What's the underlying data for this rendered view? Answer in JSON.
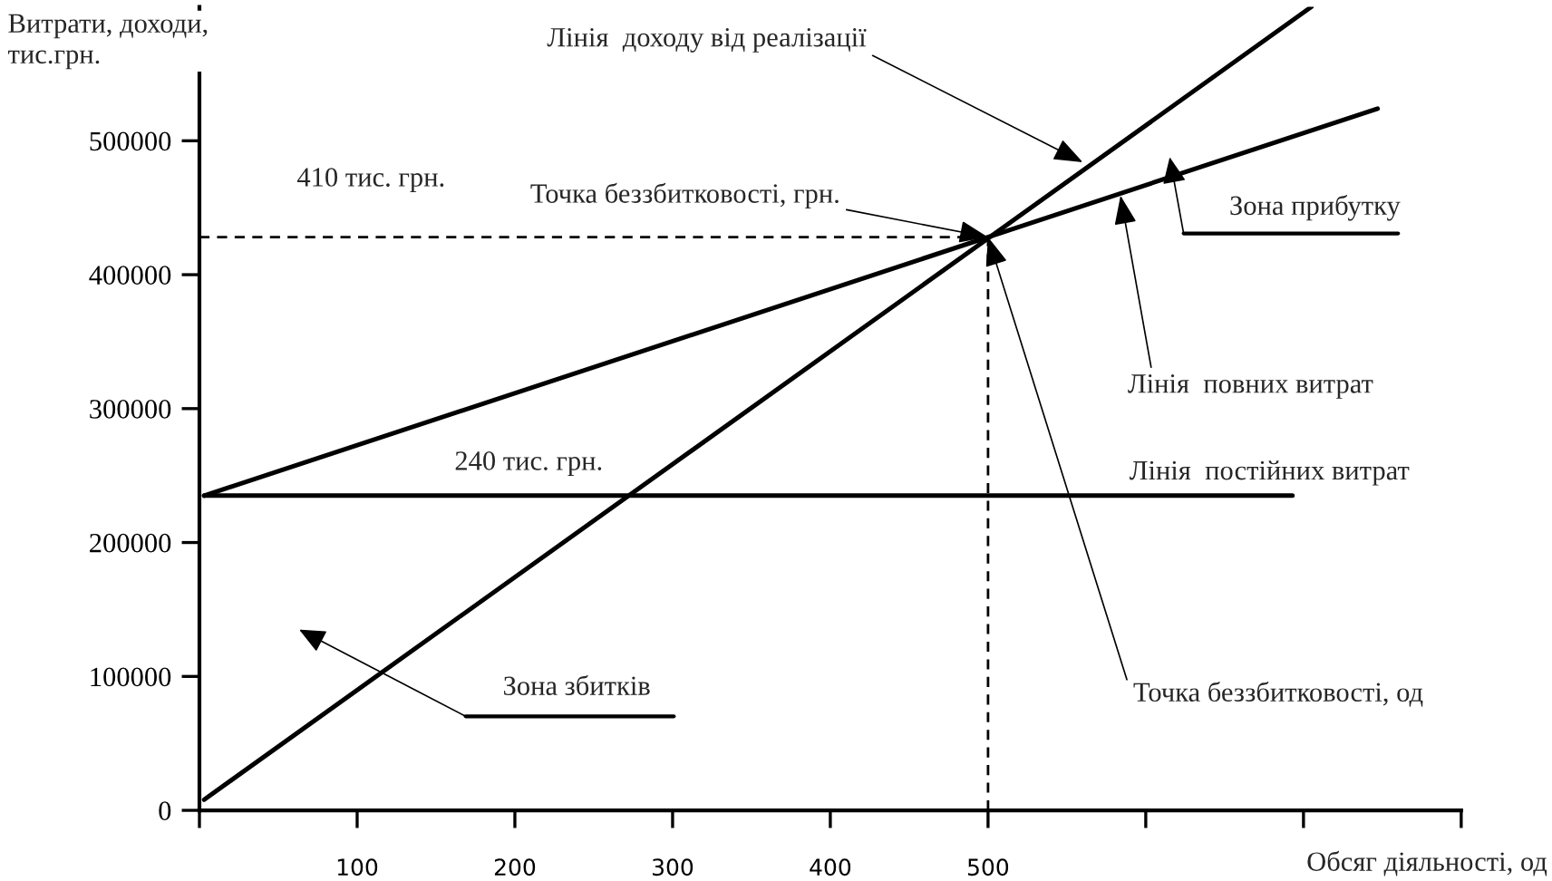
{
  "chart_data": {
    "type": "line",
    "xlabel": "Обсяг діяльності, од",
    "ylabel": "Витрати, доходи,\nтис.грн.",
    "series": [
      {
        "color": "#000000",
        "x": [
          3,
          705
        ],
        "values": [
          8000,
          600000
        ]
      },
      {
        "color": "#000000",
        "x": [
          3,
          747
        ],
        "values": [
          235000,
          524000
        ]
      },
      {
        "color": "#000000",
        "x": [
          3,
          693
        ],
        "values": [
          235000,
          235000
        ]
      },
      {
        "color": "#000000",
        "line_style": "dashed",
        "x": [
          0,
          500
        ],
        "values": [
          428000,
          428000
        ]
      },
      {
        "color": "#000000",
        "line_style": "dashed",
        "x": [
          500,
          500
        ],
        "values": [
          0,
          428000
        ]
      }
    ],
    "xlim": [
      0,
      800
    ],
    "xticks": [
      {
        "value": 0,
        "label": null
      },
      100,
      200,
      300,
      400,
      500,
      {
        "value": 600,
        "label": null
      },
      {
        "value": 700,
        "label": null
      },
      {
        "value": 800,
        "label": null
      }
    ],
    "ylim": [
      0,
      600000
    ],
    "yticks": [
      0,
      100000,
      200000,
      300000,
      400000,
      500000
    ],
    "grid": false,
    "legend": false,
    "marker": "none",
    "annotations": [
      {
        "text": "Лінія  доходу від реалізації",
        "x": 560,
        "y": 484000
      },
      {
        "text": "Точка беззбитковості, грн.",
        "x": 500,
        "y": 428000
      },
      "Зона прибутку",
      {
        "text": "Лінія  повних витрат",
        "x": 584,
        "y": 459000
      },
      "Лінія  постійних витрат",
      {
        "text": "Точка беззбитковості, од",
        "x": 500,
        "y": 428000
      },
      "Зона збитків",
      "410 тис. грн.",
      "240 тис. грн."
    ]
  }
}
